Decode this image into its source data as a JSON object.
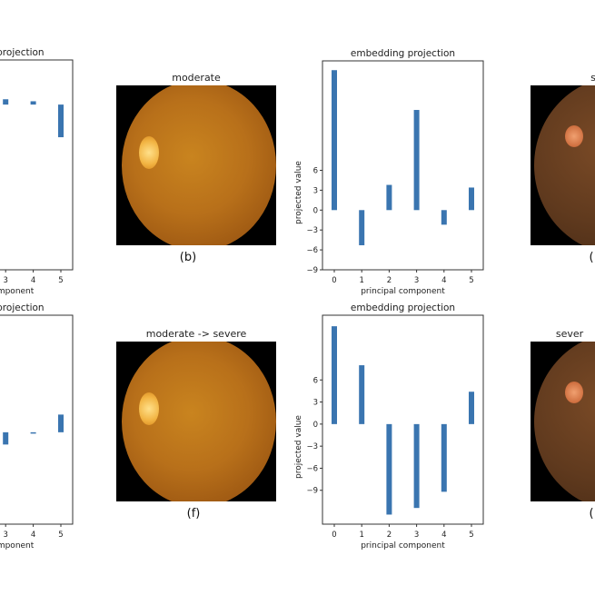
{
  "chart_data": [
    {
      "type": "bar",
      "title": "embedding projection",
      "xlabel": "principal component",
      "ylabel": "",
      "categories": [
        "3",
        "4",
        "5"
      ],
      "values": [
        0.8,
        0.5,
        -4.9
      ],
      "ylim": [
        -24.8,
        6.7
      ],
      "grid": false
    },
    {
      "type": "bar",
      "title": "embedding projection",
      "xlabel": "principal component",
      "ylabel": "projected value",
      "categories": [
        "0",
        "1",
        "2",
        "3",
        "4",
        "5"
      ],
      "values": [
        21.1,
        -5.3,
        3.8,
        15.1,
        -2.2,
        3.4
      ],
      "yticks": [
        -9,
        -6,
        -3,
        0,
        3,
        6
      ],
      "ylim": [
        -9,
        22.5
      ],
      "grid": false
    },
    {
      "type": "bar",
      "title": "embedding projection",
      "xlabel": "principal component",
      "ylabel": "",
      "categories": [
        "3",
        "4",
        "5"
      ],
      "values": [
        -1.8,
        -0.2,
        2.6
      ],
      "ylim": [
        -13.5,
        17.2
      ],
      "grid": false
    },
    {
      "type": "bar",
      "title": "embedding projection",
      "xlabel": "principal component",
      "ylabel": "projected value",
      "categories": [
        "0",
        "1",
        "2",
        "3",
        "4",
        "5"
      ],
      "values": [
        13.3,
        8.0,
        -12.3,
        -11.4,
        -9.2,
        4.4
      ],
      "yticks": [
        -9,
        -6,
        -3,
        0,
        3,
        6
      ],
      "ylim": [
        -13.6,
        14.8
      ],
      "grid": false
    }
  ],
  "images": {
    "top_middle": {
      "title": "moderate",
      "caption": "(b)"
    },
    "top_right": {
      "title": "s",
      "caption": "("
    },
    "bottom_middle": {
      "title": "moderate -> severe",
      "caption": "(f)"
    },
    "bottom_right": {
      "title": "sever",
      "caption": "("
    }
  },
  "colors": {
    "bar": "#3a75b0",
    "axis": "#333333"
  }
}
